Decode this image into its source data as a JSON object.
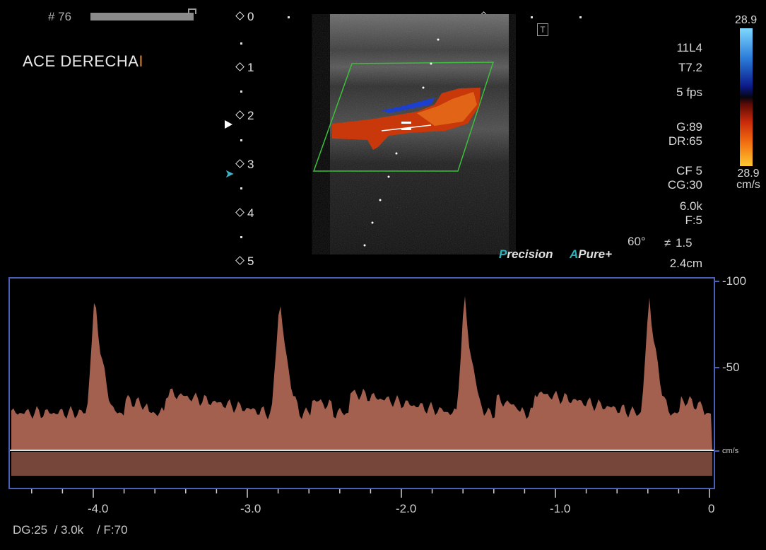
{
  "header": {
    "frame_number": "# 76",
    "label": "ACE DERECHA",
    "label_cursor": "I"
  },
  "depth_scale": {
    "marks": [
      "0",
      "1",
      "2",
      "3",
      "4",
      "5"
    ]
  },
  "parameters": {
    "probe": "11L4",
    "preset": "T7.2",
    "frame_rate": "5 fps",
    "gain": "G:89",
    "dynamic_range": "DR:65",
    "color_freq": "CF 5",
    "color_gain": "CG:30",
    "prf": "6.0k",
    "filter": "F:5",
    "angle": "60°",
    "angle_value": "1.5",
    "gate_depth": "2.4cm"
  },
  "color_scale": {
    "top": "28.9",
    "bottom": "28.9",
    "unit": "cm/s",
    "colors": [
      "#7fd8ff",
      "#2a7bd8",
      "#0c1b8a",
      "#c82a0a",
      "#f06a10",
      "#ffc830"
    ]
  },
  "brand": {
    "precision_initial": "P",
    "precision_rest": "recision",
    "apure_initial": "A",
    "apure_rest": "Pure",
    "apure_plus": "+"
  },
  "toolbar": {
    "t_icon_label": "T"
  },
  "spectral": {
    "y_ticks": [
      "-100",
      "-50"
    ],
    "y_unit": "cm/s",
    "x_ticks": [
      "-4.0",
      "-3.0",
      "-2.0",
      "-1.0",
      "0"
    ],
    "peaks_s": [
      -4.0,
      -2.8,
      -1.6,
      -0.4
    ],
    "peak_velocity": 90,
    "baseline_color": "#e0e0e0",
    "spectrum_color": "#d9806a",
    "border_color": "#4a5fb8"
  },
  "footer": {
    "doppler_gain": "DG:25",
    "doppler_prf": "/ 3.0k",
    "doppler_filter": "/ F:70"
  }
}
